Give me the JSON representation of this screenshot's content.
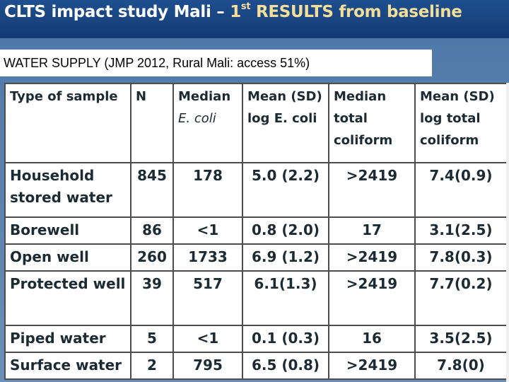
{
  "slide": {
    "title_main": "CLTS impact study Mali – ",
    "title_ordinal_num": "1",
    "title_ordinal_sup": "st",
    "title_rest": " RESULTS from baseline",
    "subtitle": "WATER SUPPLY (JMP 2012, Rural Mali: access  51%)"
  },
  "table": {
    "headers": [
      {
        "line1": "Type of sample",
        "line2": "",
        "line3": ""
      },
      {
        "line1": "N",
        "line2": "",
        "line3": ""
      },
      {
        "line1": "Median",
        "line2": "E. coli",
        "line3": ""
      },
      {
        "line1": "Mean (SD)",
        "line2": "log E. coli",
        "line3": ""
      },
      {
        "line1": "Median",
        "line2": "total",
        "line3": "coliform"
      },
      {
        "line1": "Mean (SD)",
        "line2": "log total",
        "line3": "coliform"
      }
    ],
    "rows": [
      {
        "type": "Household stored water",
        "n": "845",
        "median_ecoli": "178",
        "mean_log_ecoli": "5.0 (2.2)",
        "median_tc": ">2419",
        "mean_log_tc": "7.4(0.9)"
      },
      {
        "type": "Borewell",
        "n": "86",
        "median_ecoli": "<1",
        "mean_log_ecoli": "0.8 (2.0)",
        "median_tc": "17",
        "mean_log_tc": "3.1(2.5)"
      },
      {
        "type": "Open well",
        "n": "260",
        "median_ecoli": "1733",
        "mean_log_ecoli": "6.9 (1.2)",
        "median_tc": ">2419",
        "mean_log_tc": "7.8(0.3)"
      },
      {
        "type": "Protected well",
        "n": "39",
        "median_ecoli": "517",
        "mean_log_ecoli": "6.1(1.3)",
        "median_tc": ">2419",
        "mean_log_tc": "7.7(0.2)"
      },
      {
        "type": "Piped water",
        "n": "5",
        "median_ecoli": "<1",
        "mean_log_ecoli": "0.1 (0.3)",
        "median_tc": "16",
        "mean_log_tc": "3.5(2.5)"
      },
      {
        "type": "Surface water",
        "n": "2",
        "median_ecoli": "795",
        "mean_log_ecoli": "6.5 (0.8)",
        "median_tc": ">2419",
        "mean_log_tc": "7.8(0)"
      }
    ]
  }
}
